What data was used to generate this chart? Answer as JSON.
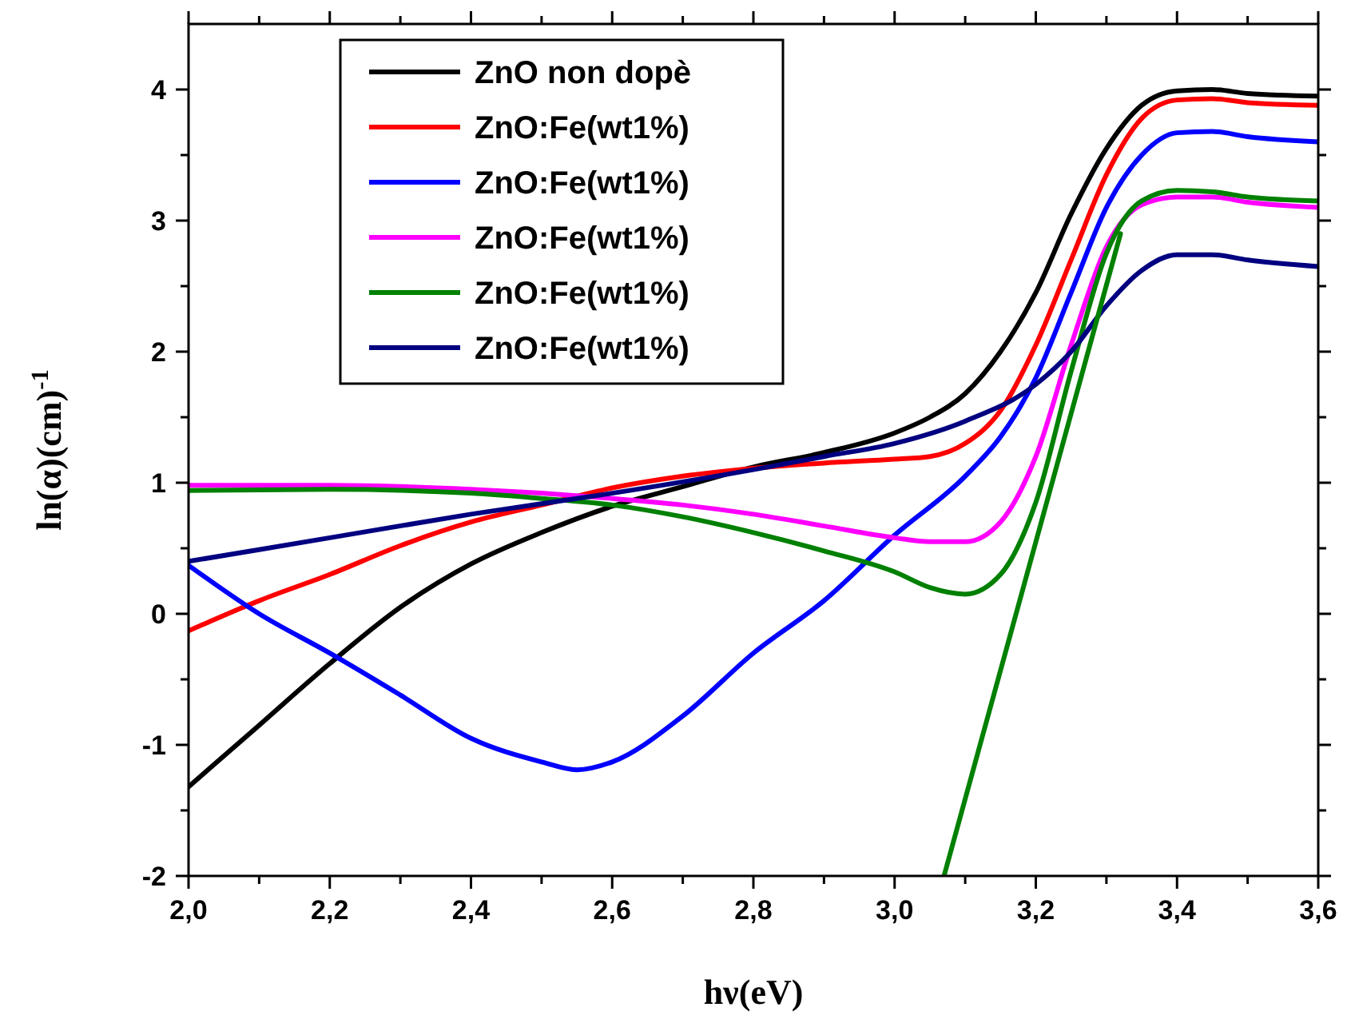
{
  "chart_data": {
    "type": "line",
    "xlabel": "hν(eV)",
    "ylabel": "ln(α)(cm)$^{-1}$",
    "xlim": [
      2,
      3.6
    ],
    "ylim": [
      -2,
      4.5
    ],
    "xticks": [
      {
        "value": 2,
        "label": "2,0"
      },
      {
        "value": 2.1,
        "label": null
      },
      {
        "value": 2.2,
        "label": "2,2"
      },
      {
        "value": 2.3,
        "label": null
      },
      {
        "value": 2.4,
        "label": "2,4"
      },
      {
        "value": 2.5,
        "label": null
      },
      {
        "value": 2.6,
        "label": "2,6"
      },
      {
        "value": 2.7,
        "label": null
      },
      {
        "value": 2.8,
        "label": "2,8"
      },
      {
        "value": 2.9,
        "label": null
      },
      {
        "value": 3,
        "label": "3,0"
      },
      {
        "value": 3.1,
        "label": null
      },
      {
        "value": 3.2,
        "label": "3,2"
      },
      {
        "value": 3.3,
        "label": null
      },
      {
        "value": 3.4,
        "label": "3,4"
      },
      {
        "value": 3.5,
        "label": null
      },
      {
        "value": 3.6,
        "label": "3,6"
      }
    ],
    "yticks": [
      -2,
      {
        "value": -1.5,
        "label": null
      },
      -1,
      {
        "value": -0.5,
        "label": null
      },
      0,
      {
        "value": 0.5,
        "label": null
      },
      1,
      {
        "value": 1.5,
        "label": null
      },
      2,
      {
        "value": 2.5,
        "label": null
      },
      3,
      {
        "value": 3.5,
        "label": null
      },
      4
    ],
    "grid": false,
    "legend": "top left",
    "marker": "none",
    "line_style": "solid",
    "series": [
      {
        "name": "ZnO non dopè",
        "color": "#000000",
        "x": [
          2.0,
          2.1,
          2.2,
          2.3,
          2.4,
          2.5,
          2.6,
          2.7,
          2.8,
          2.9,
          3.0,
          3.05,
          3.1,
          3.15,
          3.2,
          3.25,
          3.3,
          3.35,
          3.4,
          3.45,
          3.5,
          3.6
        ],
        "values": [
          -1.32,
          -0.85,
          -0.38,
          0.05,
          0.38,
          0.62,
          0.82,
          0.97,
          1.12,
          1.23,
          1.38,
          1.5,
          1.68,
          2.0,
          2.45,
          3.05,
          3.55,
          3.88,
          3.99,
          4.0,
          3.97,
          3.95
        ]
      },
      {
        "name": "ZnO:Fe(wt1%)",
        "color": "#ff0000",
        "x": [
          2.0,
          2.1,
          2.2,
          2.3,
          2.4,
          2.5,
          2.6,
          2.7,
          2.8,
          2.9,
          3.0,
          3.05,
          3.1,
          3.15,
          3.2,
          3.25,
          3.3,
          3.35,
          3.4,
          3.45,
          3.5,
          3.6
        ],
        "values": [
          -0.13,
          0.1,
          0.3,
          0.52,
          0.7,
          0.83,
          0.96,
          1.05,
          1.11,
          1.15,
          1.18,
          1.2,
          1.3,
          1.55,
          2.05,
          2.7,
          3.35,
          3.78,
          3.92,
          3.93,
          3.9,
          3.88
        ]
      },
      {
        "name": "ZnO:Fe(wt1%)",
        "color": "#0000ff",
        "x": [
          2.0,
          2.1,
          2.2,
          2.3,
          2.4,
          2.5,
          2.55,
          2.6,
          2.7,
          2.8,
          2.9,
          3.0,
          3.1,
          3.15,
          3.2,
          3.25,
          3.3,
          3.35,
          3.4,
          3.45,
          3.5,
          3.6
        ],
        "values": [
          0.37,
          0.0,
          -0.3,
          -0.62,
          -0.95,
          -1.13,
          -1.19,
          -1.13,
          -0.78,
          -0.3,
          0.1,
          0.6,
          1.05,
          1.35,
          1.8,
          2.45,
          3.1,
          3.5,
          3.67,
          3.68,
          3.64,
          3.6
        ]
      },
      {
        "name": "ZnO:Fe(wt1%)",
        "color": "#ff00ff",
        "x": [
          2.0,
          2.2,
          2.4,
          2.5,
          2.6,
          2.7,
          2.8,
          2.9,
          3.0,
          3.05,
          3.1,
          3.15,
          3.2,
          3.25,
          3.3,
          3.35,
          3.4,
          3.45,
          3.5,
          3.6
        ],
        "values": [
          0.98,
          0.98,
          0.95,
          0.92,
          0.88,
          0.83,
          0.76,
          0.67,
          0.58,
          0.55,
          0.55,
          0.7,
          1.2,
          2.05,
          2.8,
          3.12,
          3.18,
          3.18,
          3.14,
          3.1
        ]
      },
      {
        "name": "ZnO:Fe(wt1%)",
        "color": "#008000",
        "x": [
          2.0,
          2.2,
          2.4,
          2.5,
          2.6,
          2.7,
          2.8,
          2.9,
          3.0,
          3.05,
          3.1,
          3.15,
          3.2,
          3.25,
          3.3,
          3.35,
          3.4,
          3.45,
          3.5,
          3.6
        ],
        "values": [
          0.94,
          0.95,
          0.92,
          0.88,
          0.83,
          0.74,
          0.62,
          0.48,
          0.32,
          0.2,
          0.15,
          0.3,
          0.85,
          1.85,
          2.75,
          3.15,
          3.23,
          3.22,
          3.18,
          3.15
        ]
      },
      {
        "name": "ZnO:Fe(wt1%)",
        "color": "#000080",
        "x": [
          2.0,
          2.2,
          2.4,
          2.6,
          2.8,
          2.9,
          3.0,
          3.1,
          3.2,
          3.25,
          3.3,
          3.35,
          3.4,
          3.45,
          3.5,
          3.6
        ],
        "values": [
          0.4,
          0.58,
          0.76,
          0.92,
          1.1,
          1.2,
          1.3,
          1.47,
          1.75,
          2.0,
          2.35,
          2.62,
          2.74,
          2.74,
          2.7,
          2.65
        ]
      },
      {
        "type": "line",
        "color": "#008000",
        "x": [
          3.07,
          3.32
        ],
        "values": [
          -2,
          2.9
        ]
      }
    ]
  }
}
